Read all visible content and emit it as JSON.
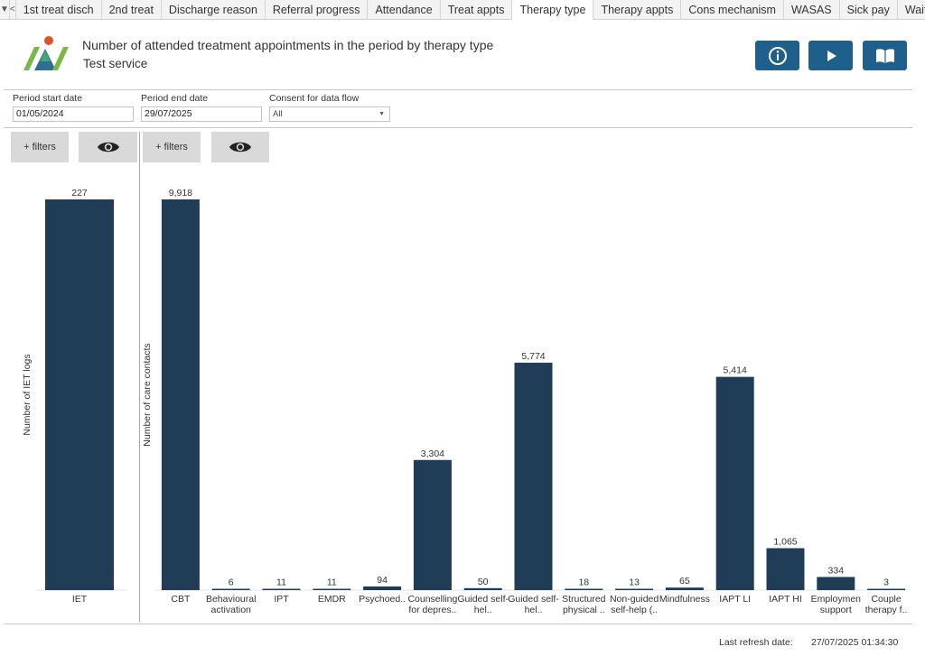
{
  "tabs": {
    "items": [
      "1st treat disch",
      "2nd treat",
      "Discharge reason",
      "Referral progress",
      "Attendance",
      "Treat appts",
      "Therapy type",
      "Therapy appts",
      "Cons mechanism",
      "WASAS",
      "Sick pay",
      "Wait"
    ],
    "active": "Therapy type"
  },
  "header": {
    "title": "Number of attended treatment appointments in the period by therapy type",
    "subtitle": "Test service",
    "buttons": [
      "info-icon",
      "play-icon",
      "book-icon"
    ],
    "button_color": "#1f5f8b"
  },
  "params": {
    "start_label": "Period start date",
    "start_value": "01/05/2024",
    "end_label": "Period end date",
    "end_value": "29/07/2025",
    "consent_label": "Consent for data flow",
    "consent_value": "All"
  },
  "filters": {
    "left_label": "+ filters",
    "right_label": "+ filters"
  },
  "chart_data": [
    {
      "type": "bar",
      "categories": [
        [
          "IET"
        ]
      ],
      "values": [
        227
      ],
      "value_labels": [
        "227"
      ],
      "ylabel": "Number of IET logs",
      "ylim": [
        0,
        227
      ],
      "bar_color": "#1f3d56",
      "grid": false
    },
    {
      "type": "bar",
      "categories": [
        [
          "CBT"
        ],
        [
          "Behavioural",
          "activation"
        ],
        [
          "IPT"
        ],
        [
          "EMDR"
        ],
        [
          "Psychoed.."
        ],
        [
          "Counselling",
          "for depres.."
        ],
        [
          "Guided self-",
          "hel.."
        ],
        [
          "Guided self-",
          "hel.."
        ],
        [
          "Structured",
          "physical .."
        ],
        [
          "Non-guided",
          "self-help (.."
        ],
        [
          "Mindfulness"
        ],
        [
          "IAPT LI"
        ],
        [
          "IAPT HI"
        ],
        [
          "Employmen",
          "support"
        ],
        [
          "Couple",
          "therapy f.."
        ]
      ],
      "values": [
        9918,
        6,
        11,
        11,
        94,
        3304,
        50,
        5774,
        18,
        13,
        65,
        5414,
        1065,
        334,
        3
      ],
      "value_labels": [
        "9,918",
        "6",
        "11",
        "11",
        "94",
        "3,304",
        "50",
        "5,774",
        "18",
        "13",
        "65",
        "5,414",
        "1,065",
        "334",
        "3"
      ],
      "ylabel": "Number of care contacts",
      "ylim": [
        0,
        9918
      ],
      "bar_color": "#1f3d56",
      "grid": false
    }
  ],
  "footer": {
    "refresh_label": "Last refresh date:",
    "refresh_value": "27/07/2025 01:34:30"
  }
}
